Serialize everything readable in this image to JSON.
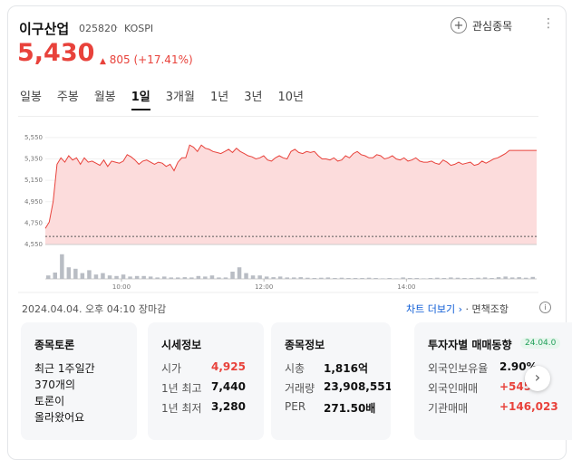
{
  "stock": {
    "name": "이구산업",
    "code": "025820",
    "market": "KOSPI",
    "price": "5,430",
    "change_arrow": "▲",
    "change": "805",
    "change_pct": "(+17.41%)",
    "favorite_label": "관심종목"
  },
  "tabs": [
    "일봉",
    "주봉",
    "월봉",
    "1일",
    "3개월",
    "1년",
    "3년",
    "10년"
  ],
  "active_tab": "1일",
  "chart_data": {
    "type": "area",
    "xlabel": "",
    "ylabel": "",
    "x_ticks": [
      "10:00",
      "12:00",
      "14:00"
    ],
    "y_ticks": [
      4550,
      4750,
      4950,
      5150,
      5350,
      5550
    ],
    "y_tick_labels": [
      "4,550",
      "4,750",
      "4,950",
      "5,150",
      "5,350",
      "5,550"
    ],
    "ylim": [
      4550,
      5600
    ],
    "previous_close": 4625,
    "series": [
      {
        "values": [
          4700,
          4760,
          4950,
          5300,
          5360,
          5320,
          5380,
          5340,
          5360,
          5300,
          5360,
          5320,
          5330,
          5310,
          5290,
          5340,
          5280,
          5330,
          5320,
          5310,
          5330,
          5390,
          5370,
          5340,
          5300,
          5330,
          5340,
          5320,
          5300,
          5320,
          5310,
          5280,
          5300,
          5240,
          5320,
          5360,
          5360,
          5480,
          5460,
          5420,
          5480,
          5450,
          5440,
          5420,
          5410,
          5400,
          5420,
          5440,
          5410,
          5450,
          5420,
          5400,
          5380,
          5370,
          5350,
          5360,
          5380,
          5340,
          5330,
          5360,
          5380,
          5360,
          5350,
          5420,
          5440,
          5410,
          5400,
          5420,
          5410,
          5420,
          5380,
          5350,
          5350,
          5340,
          5360,
          5330,
          5340,
          5380,
          5360,
          5400,
          5420,
          5390,
          5380,
          5360,
          5360,
          5390,
          5380,
          5350,
          5360,
          5380,
          5350,
          5340,
          5360,
          5330,
          5340,
          5360,
          5330,
          5320,
          5320,
          5330,
          5310,
          5300,
          5340,
          5320,
          5290,
          5300,
          5320,
          5300,
          5310,
          5320,
          5290,
          5300,
          5330,
          5310,
          5330,
          5350,
          5360,
          5380,
          5400,
          5430,
          5430,
          5430,
          5430,
          5430,
          5430,
          5430,
          5430
        ]
      }
    ],
    "volume": [
      0.12,
      0.22,
      0.85,
      0.4,
      0.35,
      0.2,
      0.3,
      0.15,
      0.2,
      0.12,
      0.1,
      0.15,
      0.08,
      0.1,
      0.1,
      0.08,
      0.05,
      0.08,
      0.05,
      0.05,
      0.06,
      0.05,
      0.1,
      0.08,
      0.12,
      0.05,
      0.05,
      0.25,
      0.4,
      0.2,
      0.12,
      0.12,
      0.08,
      0.06,
      0.08,
      0.05,
      0.05,
      0.06,
      0.04,
      0.03,
      0.04,
      0.05,
      0.03,
      0.04,
      0.03,
      0.03,
      0.03,
      0.04,
      0.03,
      0.02,
      0.03,
      0.02,
      0.05,
      0.03,
      0.03,
      0.02,
      0.03,
      0.04,
      0.03,
      0.05,
      0.04,
      0.03,
      0.03,
      0.04,
      0.05,
      0.03,
      0.06,
      0.08,
      0.05,
      0.06,
      0.04,
      0.07
    ]
  },
  "timestamp": "2024.04.04. 오후 04:10 장마감",
  "links": {
    "chart_more": "차트 더보기",
    "chart_more_arrow": "›",
    "sep": "·",
    "disclaimer": "면책조항",
    "info_icon": "i"
  },
  "panels": {
    "discussion": {
      "title": "종목토론",
      "text1": "최근 1주일간",
      "text2": "370개의",
      "text3": "토론이",
      "text4": "올라왔어요"
    },
    "market": {
      "title": "시세정보",
      "rows": [
        {
          "label": "시가",
          "value": "4,925"
        },
        {
          "label": "1년 최고",
          "value": "7,440"
        },
        {
          "label": "1년 최저",
          "value": "3,280"
        }
      ]
    },
    "stockinfo": {
      "title": "종목정보",
      "rows": [
        {
          "label": "시총",
          "value": "1,816억"
        },
        {
          "label": "거래량",
          "value": "23,908,551"
        },
        {
          "label": "PER",
          "value": "271.50배"
        }
      ]
    },
    "investor": {
      "title": "투자자별 매매동향",
      "badge": "24.04.0",
      "rows": [
        {
          "label": "외국인보유율",
          "value": "2.90%"
        },
        {
          "label": "외국인매매",
          "value": "+545"
        },
        {
          "label": "기관매매",
          "value": "+146,023"
        }
      ]
    }
  },
  "colors": {
    "up": "#e8423b",
    "area": "#fcdcdc",
    "volume": "#b9bdc4"
  }
}
